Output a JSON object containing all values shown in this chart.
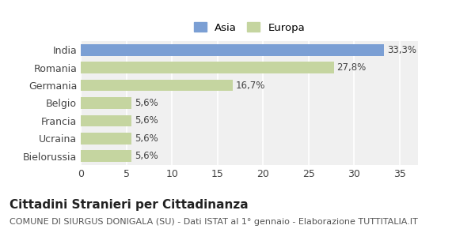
{
  "categories": [
    "India",
    "Romania",
    "Germania",
    "Belgio",
    "Francia",
    "Ucraina",
    "Bielorussia"
  ],
  "values": [
    33.3,
    27.8,
    16.7,
    5.6,
    5.6,
    5.6,
    5.6
  ],
  "bar_colors": [
    "#7b9fd4",
    "#c5d5a0",
    "#c5d5a0",
    "#c5d5a0",
    "#c5d5a0",
    "#c5d5a0",
    "#c5d5a0"
  ],
  "labels": [
    "33,3%",
    "27,8%",
    "16,7%",
    "5,6%",
    "5,6%",
    "5,6%",
    "5,6%"
  ],
  "legend_labels": [
    "Asia",
    "Europa"
  ],
  "legend_colors": [
    "#7b9fd4",
    "#c5d5a0"
  ],
  "xlim": [
    0,
    37
  ],
  "xticks": [
    0,
    5,
    10,
    15,
    20,
    25,
    30,
    35
  ],
  "title": "Cittadini Stranieri per Cittadinanza",
  "subtitle": "COMUNE DI SIURGUS DONIGALA (SU) - Dati ISTAT al 1° gennaio - Elaborazione TUTTITALIA.IT",
  "title_fontsize": 11,
  "subtitle_fontsize": 8,
  "label_fontsize": 8.5,
  "tick_fontsize": 9,
  "background_color": "#ffffff",
  "plot_background": "#f0f0f0"
}
